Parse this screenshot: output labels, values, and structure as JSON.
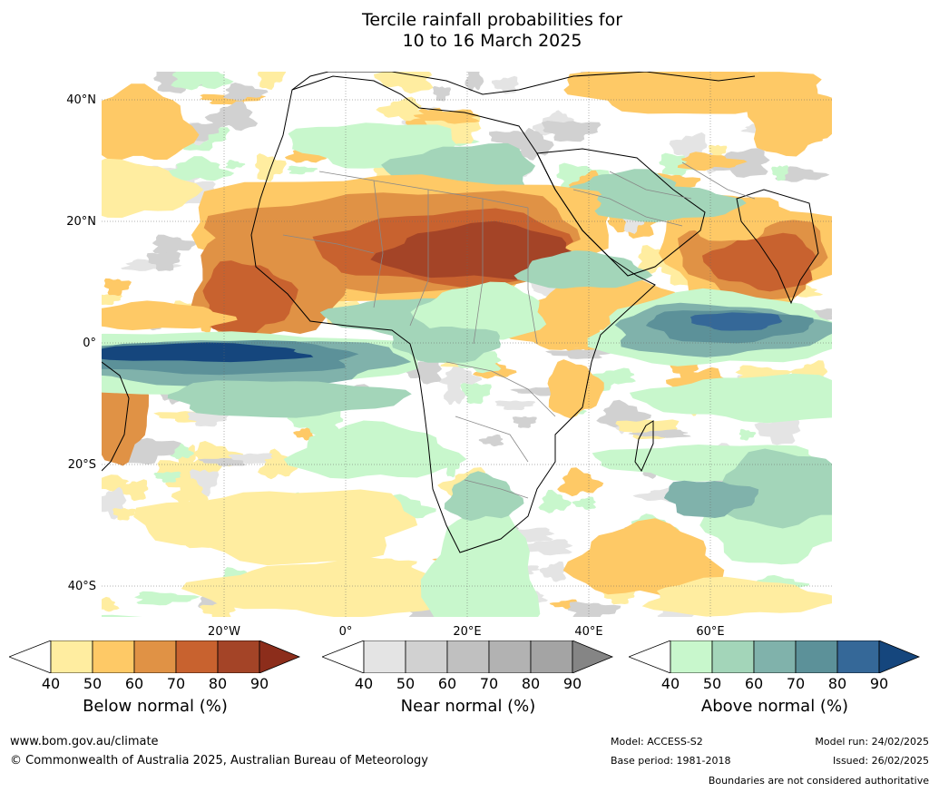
{
  "title": {
    "line1": "Tercile rainfall probabilities for",
    "line2": "10 to 16 March 2025"
  },
  "map": {
    "lat_labels": [
      "40°N",
      "20°N",
      "0°",
      "20°S",
      "40°S"
    ],
    "lon_labels": [
      "20°W",
      "0°",
      "20°E",
      "40°E",
      "60°E"
    ],
    "colors": {
      "below": [
        "#ffffff",
        "#ffeda0",
        "#fec966",
        "#e09245",
        "#c8622f",
        "#a44427",
        "#8c2d1b"
      ],
      "near": [
        "#ffffff",
        "#e4e4e4",
        "#d1d1d1",
        "#c0c0c0",
        "#b2b2b2",
        "#a4a4a4",
        "#858585"
      ],
      "above": [
        "#ffffff",
        "#c8f7cc",
        "#a3d5b9",
        "#80b2ab",
        "#5c9199",
        "#356898",
        "#15467d"
      ]
    }
  },
  "colorbars": [
    {
      "key": "below",
      "title": "Below normal (%)",
      "ticks": [
        "40",
        "50",
        "60",
        "70",
        "80",
        "90"
      ]
    },
    {
      "key": "near",
      "title": "Near normal (%)",
      "ticks": [
        "40",
        "50",
        "60",
        "70",
        "80",
        "90"
      ]
    },
    {
      "key": "above",
      "title": "Above normal (%)",
      "ticks": [
        "40",
        "50",
        "60",
        "70",
        "80",
        "90"
      ]
    }
  ],
  "footer": {
    "website": "www.bom.gov.au/climate",
    "copyright": "© Commonwealth of Australia 2025, Australian Bureau of Meteorology",
    "model": "Model: ACCESS-S2",
    "base_period": "Base period: 1981-2018",
    "model_run": "Model run: 24/02/2025",
    "issued": "Issued: 26/02/2025",
    "disclaimer": "Boundaries are not considered authoritative"
  }
}
